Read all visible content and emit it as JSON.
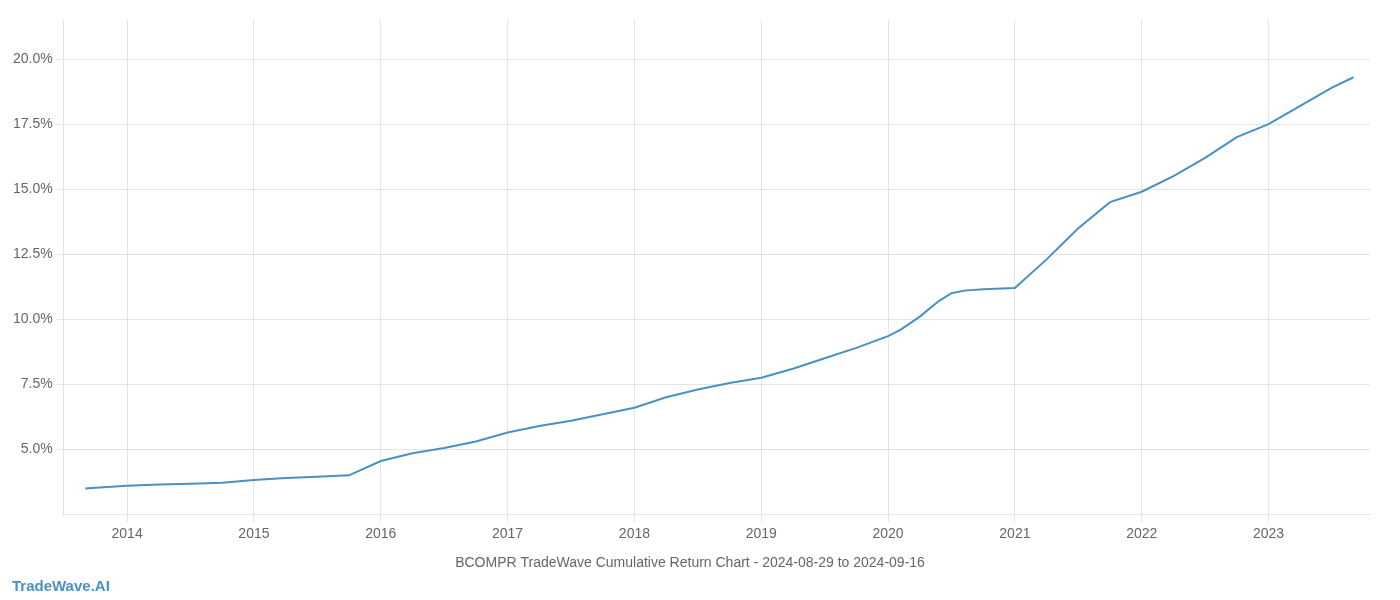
{
  "chart_data": {
    "type": "line",
    "title": "BCOMPR TradeWave Cumulative Return Chart - 2024-08-29 to 2024-09-16",
    "annotations": [
      "TradeWave.AI"
    ],
    "color": "#4a90c4",
    "grid": true,
    "x": [
      2013.67,
      2013.75,
      2014.0,
      2014.25,
      2014.5,
      2014.75,
      2015.0,
      2015.25,
      2015.5,
      2015.75,
      2016.0,
      2016.25,
      2016.5,
      2016.75,
      2017.0,
      2017.25,
      2017.5,
      2017.75,
      2018.0,
      2018.25,
      2018.5,
      2018.75,
      2019.0,
      2019.25,
      2019.5,
      2019.75,
      2020.0,
      2020.1,
      2020.25,
      2020.4,
      2020.5,
      2020.6,
      2020.75,
      2021.0,
      2021.25,
      2021.5,
      2021.75,
      2022.0,
      2022.25,
      2022.5,
      2022.75,
      2023.0,
      2023.25,
      2023.5,
      2023.67
    ],
    "values": [
      3.5,
      3.52,
      3.6,
      3.65,
      3.68,
      3.72,
      3.82,
      3.9,
      3.95,
      4.0,
      4.55,
      4.85,
      5.05,
      5.3,
      5.65,
      5.9,
      6.1,
      6.35,
      6.6,
      7.0,
      7.3,
      7.55,
      7.75,
      8.1,
      8.5,
      8.9,
      9.35,
      9.6,
      10.1,
      10.7,
      11.0,
      11.1,
      11.15,
      11.2,
      12.3,
      13.5,
      14.5,
      14.9,
      15.5,
      16.2,
      17.0,
      17.5,
      18.2,
      18.9,
      19.3
    ],
    "xlim": [
      2013.5,
      2023.8
    ],
    "xticks": [
      2014,
      2015,
      2016,
      2017,
      2018,
      2019,
      2020,
      2021,
      2022,
      2023
    ],
    "ylim": [
      2.5,
      21.5
    ],
    "yticks": [
      {
        "value": 5.0,
        "label": "5.0%"
      },
      {
        "value": 7.5,
        "label": "7.5%"
      },
      {
        "value": 10.0,
        "label": "10.0%"
      },
      {
        "value": 12.5,
        "label": "12.5%"
      },
      {
        "value": 15.0,
        "label": "15.0%"
      },
      {
        "value": 17.5,
        "label": "17.5%"
      },
      {
        "value": 20.0,
        "label": "20.0%"
      }
    ]
  }
}
